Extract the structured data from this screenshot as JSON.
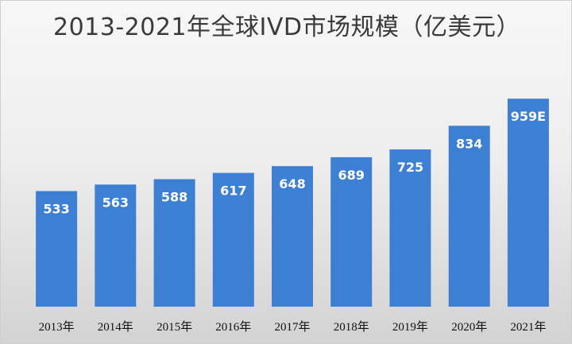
{
  "chart_data": {
    "type": "bar",
    "title": "2013-2021年全球IVD市场规模（亿美元）",
    "categories": [
      "2013年",
      "2014年",
      "2015年",
      "2016年",
      "2017年",
      "2018年",
      "2019年",
      "2020年",
      "2021年"
    ],
    "values": [
      533,
      563,
      588,
      617,
      648,
      689,
      725,
      834,
      959
    ],
    "data_labels": [
      "533",
      "563",
      "588",
      "617",
      "648",
      "689",
      "725",
      "834",
      "959E"
    ],
    "xlabel": "",
    "ylabel": "",
    "ylim": [
      0,
      1000
    ],
    "grid": false,
    "legend": "none",
    "bar_color": "#3d7fd2"
  }
}
